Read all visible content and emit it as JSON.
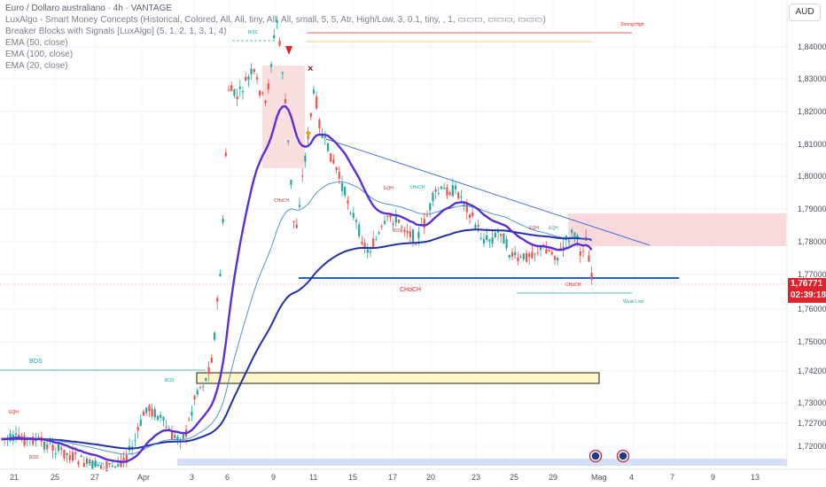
{
  "header": {
    "symbol": "Euro / Dollaro australiano · 4h · VANTAGE",
    "indicators": [
      "LuxAlgo - Smart Money Concepts (Historical, Colored, All, All, tiny, All, All, small, 5, 5, Atr, High/Low, 3, 0.1, tiny, , 1, ▭▭▭, ▭▭▭, ▭▭▭)",
      "Breaker Blocks with Signals [LuxAlgo] (5, 1, 2, 1, 3, 1, 4)",
      "EMA (50, close)",
      "EMA (100, close)",
      "EMA (20, close)"
    ],
    "currency": "AUD"
  },
  "price_tag": {
    "price": "1,76771",
    "countdown": "02:39:18",
    "color": "#e0222a"
  },
  "colors": {
    "up": "#26a69a",
    "down": "#ef5350",
    "ema20": "#5b2fd6",
    "ema50": "#3d8bd1",
    "ema100": "#2230a8",
    "trendline": "#3f6fd9"
  },
  "chart_data": {
    "type": "candlestick",
    "y_ticks": [
      "1,84000",
      "1,83000",
      "1,82000",
      "1,81000",
      "1,80000",
      "1,79000",
      "1,78000",
      "1,77000",
      "1,76000",
      "1,75000",
      "1,74200",
      "1,73000",
      "1,72700",
      "1,72000"
    ],
    "x_ticks": [
      "21",
      "25",
      "27",
      "Apr",
      "3",
      "6",
      "9",
      "11",
      "15",
      "17",
      "20",
      "23",
      "25",
      "29",
      "Mag",
      "4",
      "7",
      "9",
      "13"
    ],
    "annotations": {
      "strong_high": "Strong High",
      "weak_low": "Weak Low",
      "choch_main": "CHoCH",
      "bos_left": "BOS",
      "bos_labels": [
        "BOS",
        "BOS",
        "BOS",
        "BOS"
      ],
      "choch_labels": [
        "CHoCH",
        "CHoCH",
        "CHoCH",
        "CHoCH"
      ],
      "eqh_labels": [
        "EQH",
        "EQH",
        "EQH"
      ],
      "eqh_left": "EQH"
    }
  }
}
